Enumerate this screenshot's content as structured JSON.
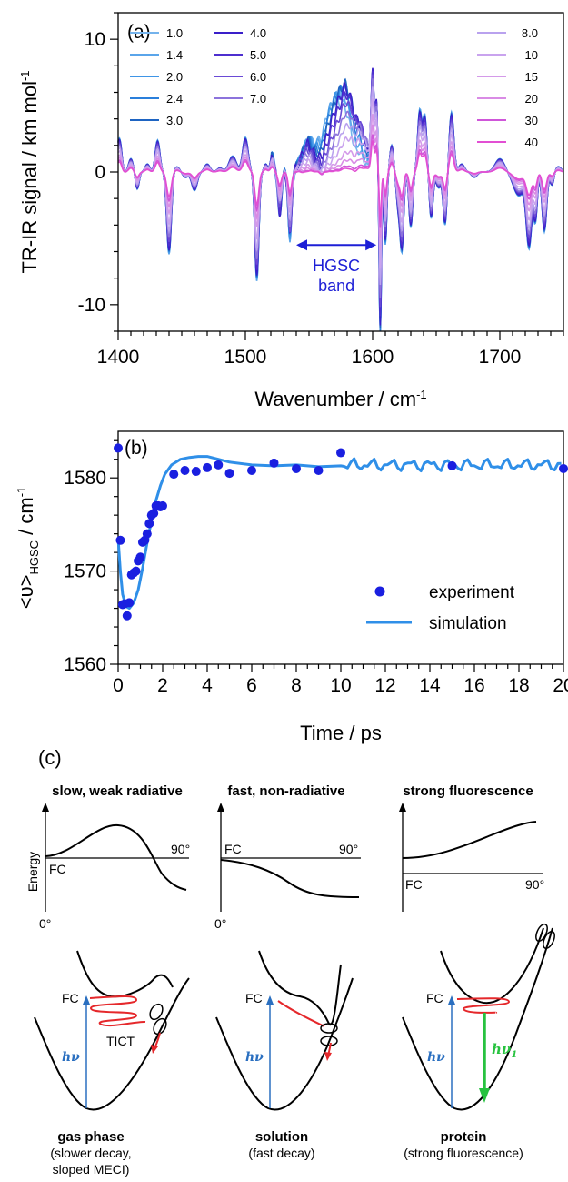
{
  "chart_data": [
    {
      "panel_label": "(a)",
      "type": "line",
      "xlabel": "Wavenumber / cm",
      "xlabel_sup": "-1",
      "ylabel": "TR-IR signal / km mol",
      "ylabel_sup": "-1",
      "xlim": [
        1400,
        1750
      ],
      "ylim": [
        -12,
        12
      ],
      "xticks": [
        "1400",
        "1500",
        "1600",
        "1700"
      ],
      "yticks": [
        "-10",
        "0",
        "10"
      ],
      "legend_placement": "top, in two groups",
      "annotation": {
        "line1": "HGSC",
        "line2": "band",
        "x_range": [
          1540,
          1603
        ],
        "y": -5.5
      },
      "series": [
        {
          "name": "1.0",
          "color": "#74b3ec",
          "hgsc_amp": 5.3,
          "neg_scale": 1.0
        },
        {
          "name": "1.4",
          "color": "#5aa5ea",
          "hgsc_amp": 5.8,
          "neg_scale": 1.0
        },
        {
          "name": "2.0",
          "color": "#3f95e6",
          "hgsc_amp": 6.0,
          "neg_scale": 0.98
        },
        {
          "name": "2.4",
          "color": "#2a7fdb",
          "hgsc_amp": 6.2,
          "neg_scale": 0.97
        },
        {
          "name": "3.0",
          "color": "#1e64c2",
          "hgsc_amp": 6.3,
          "neg_scale": 0.96
        },
        {
          "name": "4.0",
          "color": "#3a1fc9",
          "hgsc_amp": 6.0,
          "neg_scale": 0.95
        },
        {
          "name": "5.0",
          "color": "#4e2fcf",
          "hgsc_amp": 5.6,
          "neg_scale": 0.9
        },
        {
          "name": "6.0",
          "color": "#6a4ad6",
          "hgsc_amp": 5.0,
          "neg_scale": 0.85
        },
        {
          "name": "7.0",
          "color": "#8c73dc",
          "hgsc_amp": 4.3,
          "neg_scale": 0.8
        },
        {
          "name": "8.0",
          "color": "#b9a2ee",
          "hgsc_amp": 3.5,
          "neg_scale": 0.72
        },
        {
          "name": "10",
          "color": "#c9a3ee",
          "hgsc_amp": 2.6,
          "neg_scale": 0.62
        },
        {
          "name": "15",
          "color": "#d49ae9",
          "hgsc_amp": 1.6,
          "neg_scale": 0.5
        },
        {
          "name": "20",
          "color": "#d98be5",
          "hgsc_amp": 1.0,
          "neg_scale": 0.42
        },
        {
          "name": "30",
          "color": "#cf56d9",
          "hgsc_amp": 0.5,
          "neg_scale": 0.35
        },
        {
          "name": "40",
          "color": "#e24fd3",
          "hgsc_amp": 0.3,
          "neg_scale": 0.3
        }
      ]
    },
    {
      "panel_label": "(b)",
      "type": "scatter",
      "xlabel": "Time / ps",
      "ylabel": "<υ>",
      "ylabel_sub": "HGSC",
      "ylabel_unit": " / cm",
      "ylabel_sup": "-1",
      "xlim": [
        0,
        20
      ],
      "ylim": [
        1560,
        1585
      ],
      "xticks": [
        "0",
        "2",
        "4",
        "6",
        "8",
        "10",
        "12",
        "14",
        "16",
        "18",
        "20"
      ],
      "yticks": [
        "1560",
        "1570",
        "1580"
      ],
      "legend_placement": "lower-right",
      "series": [
        {
          "name": "experiment",
          "color": "#1a1fe0",
          "x": [
            0,
            0.1,
            0.2,
            0.3,
            0.4,
            0.5,
            0.6,
            0.7,
            0.8,
            0.9,
            1.0,
            1.1,
            1.2,
            1.3,
            1.4,
            1.5,
            1.6,
            1.7,
            1.8,
            1.9,
            2.0,
            2.5,
            3.0,
            3.5,
            4.0,
            4.5,
            5.0,
            6.0,
            7.0,
            8.0,
            9.0,
            10.0,
            15.0,
            20.0
          ],
          "y": [
            1583.2,
            1573.3,
            1566.4,
            1566.5,
            1565.2,
            1566.6,
            1569.6,
            1569.8,
            1570.0,
            1571.1,
            1571.5,
            1573.1,
            1573.3,
            1574.0,
            1575.1,
            1576.0,
            1576.2,
            1577.0,
            1577.0,
            1576.9,
            1577.0,
            1580.4,
            1580.8,
            1580.7,
            1581.1,
            1581.4,
            1580.5,
            1580.8,
            1581.6,
            1581.0,
            1580.8,
            1582.7,
            1581.3,
            1581.0
          ]
        },
        {
          "name": "simulation",
          "color": "#2f8fe8",
          "x": [
            0,
            0.1,
            0.2,
            0.35,
            0.5,
            0.7,
            0.9,
            1.1,
            1.3,
            1.5,
            1.7,
            1.9,
            2.1,
            2.4,
            2.8,
            3.2,
            3.6,
            4.0,
            4.5,
            5.0,
            6.0,
            7.0,
            8.0,
            9.0,
            10.0
          ],
          "y": [
            1573.5,
            1570.0,
            1567.5,
            1566.2,
            1566.0,
            1566.6,
            1568.0,
            1570.3,
            1573.0,
            1575.5,
            1577.6,
            1579.2,
            1580.4,
            1581.4,
            1582.0,
            1582.2,
            1582.3,
            1582.3,
            1582.0,
            1581.7,
            1581.4,
            1581.3,
            1581.4,
            1581.2,
            1581.3
          ],
          "noisy_tail": {
            "x_start": 5,
            "x_end": 20,
            "mean": 1581.4,
            "amplitude": 0.8
          }
        }
      ]
    }
  ],
  "panel_c": {
    "label": "(c)",
    "columns": [
      {
        "title": "slow, weak radiative",
        "axis_y": "Energy",
        "fc": "FC",
        "deg0": "0°",
        "deg90": "90°",
        "mark_tict": "TICT",
        "excitation": "hν",
        "caption": "gas phase",
        "caption_l2": "(slower decay,",
        "caption_l3": "sloped MECI)"
      },
      {
        "title": "fast, non-radiative",
        "fc": "FC",
        "deg0": "0°",
        "deg90": "90°",
        "excitation": "hν",
        "caption": "solution",
        "caption_l2": "(fast decay)"
      },
      {
        "title": "strong fluorescence",
        "fc": "FC",
        "deg90": "90°",
        "excitation": "hν",
        "emission": "hν",
        "emission_sub": "1",
        "caption": "protein",
        "caption_l2": "(strong fluorescence)"
      }
    ],
    "colors": {
      "excitation": "#2a6fc0",
      "emission": "#27c23f",
      "wavepacket": "#e5282b"
    }
  }
}
